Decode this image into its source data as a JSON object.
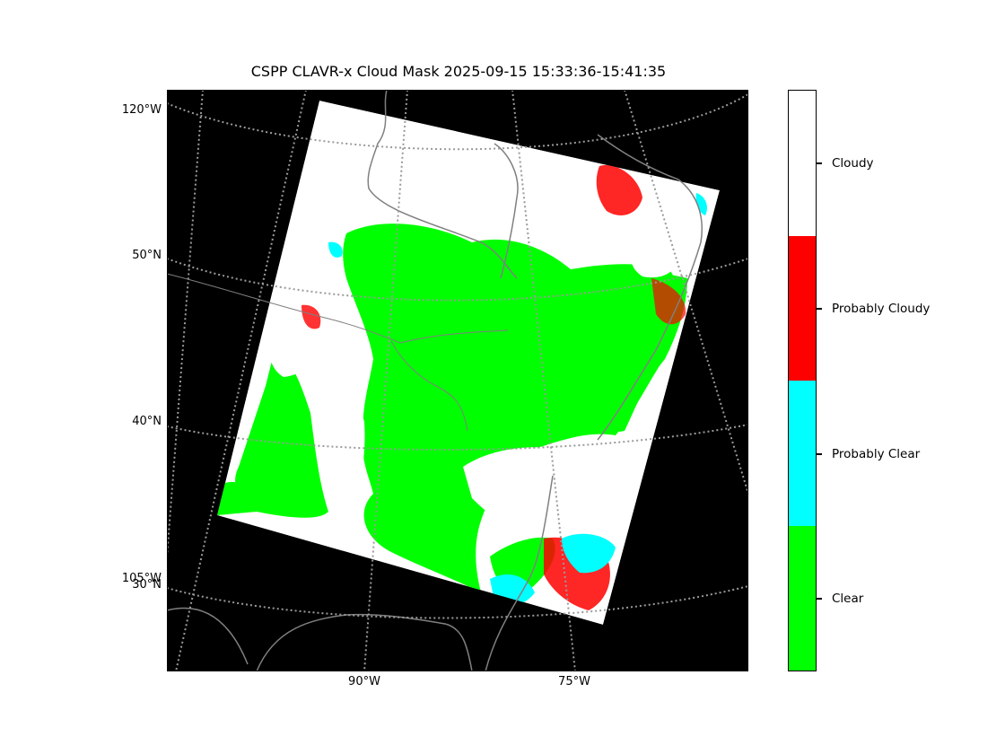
{
  "title": "CSPP CLAVR-x Cloud Mask 2025-09-15 15:33:36-15:41:35",
  "map": {
    "background_color": "#000000",
    "graticule_color": "#9a9a9a",
    "coastline_color": "#808080",
    "lat_labels": [
      "120°W",
      "50°N",
      "40°N",
      "105°W",
      "30°N"
    ],
    "lon_labels": [
      "90°W",
      "75°W"
    ]
  },
  "legend": {
    "type": "colorbar",
    "placement": "right",
    "categories": [
      {
        "label": "Cloudy",
        "color": "#ffffff"
      },
      {
        "label": "Probably Cloudy",
        "color": "#ff0000"
      },
      {
        "label": "Probably Clear",
        "color": "#00ffff"
      },
      {
        "label": "Clear",
        "color": "#00ff00"
      }
    ]
  }
}
